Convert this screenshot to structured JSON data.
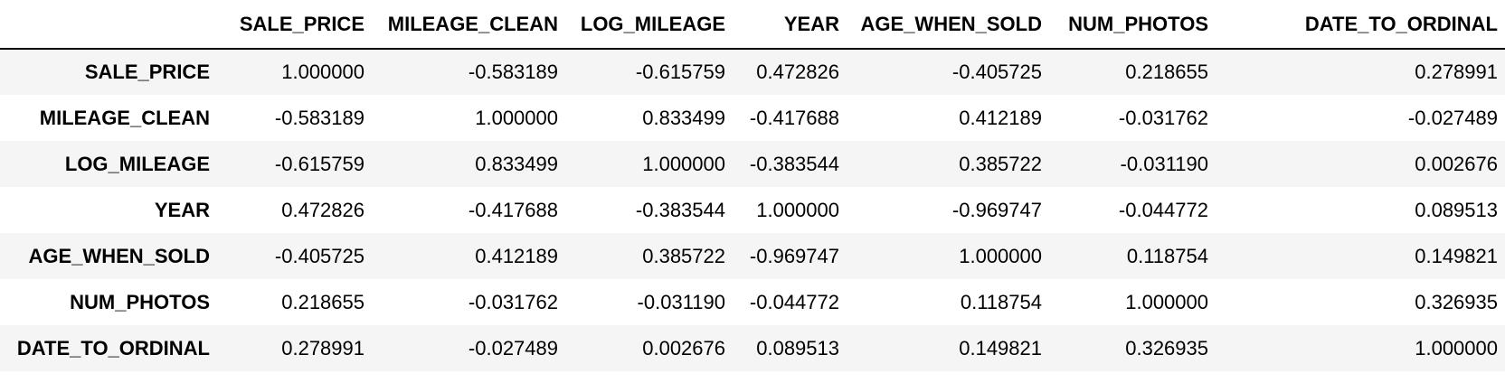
{
  "table": {
    "corner": "",
    "columns": [
      "SALE_PRICE",
      "MILEAGE_CLEAN",
      "LOG_MILEAGE",
      "YEAR",
      "AGE_WHEN_SOLD",
      "NUM_PHOTOS",
      "DATE_TO_ORDINAL"
    ],
    "rows": [
      {
        "label": "SALE_PRICE",
        "values": [
          "1.000000",
          "-0.583189",
          "-0.615759",
          "0.472826",
          "-0.405725",
          "0.218655",
          "0.278991"
        ]
      },
      {
        "label": "MILEAGE_CLEAN",
        "values": [
          "-0.583189",
          "1.000000",
          "0.833499",
          "-0.417688",
          "0.412189",
          "-0.031762",
          "-0.027489"
        ]
      },
      {
        "label": "LOG_MILEAGE",
        "values": [
          "-0.615759",
          "0.833499",
          "1.000000",
          "-0.383544",
          "0.385722",
          "-0.031190",
          "0.002676"
        ]
      },
      {
        "label": "YEAR",
        "values": [
          "0.472826",
          "-0.417688",
          "-0.383544",
          "1.000000",
          "-0.969747",
          "-0.044772",
          "0.089513"
        ]
      },
      {
        "label": "AGE_WHEN_SOLD",
        "values": [
          "-0.405725",
          "0.412189",
          "0.385722",
          "-0.969747",
          "1.000000",
          "0.118754",
          "0.149821"
        ]
      },
      {
        "label": "NUM_PHOTOS",
        "values": [
          "0.218655",
          "-0.031762",
          "-0.031190",
          "-0.044772",
          "0.118754",
          "1.000000",
          "0.326935"
        ]
      },
      {
        "label": "DATE_TO_ORDINAL",
        "values": [
          "0.278991",
          "-0.027489",
          "0.002676",
          "0.089513",
          "0.149821",
          "0.326935",
          "1.000000"
        ]
      }
    ]
  }
}
